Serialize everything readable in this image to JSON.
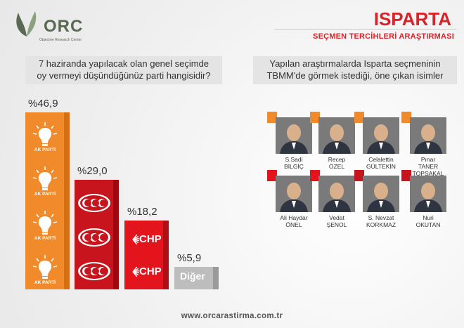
{
  "header": {
    "logo_text": "ORC",
    "logo_sub": "Objective Research Center",
    "region": "ISPARTA",
    "subtitle": "SEÇMEN TERCİHLERİ ARAŞTIRMASI"
  },
  "question_left": {
    "line1": "7 haziranda yapılacak olan genel seçimde",
    "line2": "oy vermeyi düşündüğünüz parti hangisidir?"
  },
  "question_right": {
    "line1": "Yapılan araştırmalarda Isparta seçmeninin",
    "line2": "TBMM'de görmek istediği, öne çıkan isimler"
  },
  "chart_data": {
    "type": "bar",
    "categories": [
      "AK PARTİ",
      "MHP",
      "CHP",
      "Diğer"
    ],
    "values": [
      46.9,
      29.0,
      18.2,
      5.9
    ],
    "value_labels": [
      "%46,9",
      "%29,0",
      "%18,2",
      "%5,9"
    ],
    "colors": [
      "#f08a2a",
      "#c8141c",
      "#e3141c",
      "#bdbdbd"
    ],
    "title": "",
    "xlabel": "",
    "ylabel": ""
  },
  "party_logo_texts": {
    "ak": "AK PARTİ",
    "chp": "CHP",
    "other": "Diğer"
  },
  "candidates": [
    {
      "line1": "S.Sadi",
      "line2": "BİLGİÇ",
      "party": "ak"
    },
    {
      "line1": "Recep",
      "line2": "ÖZEL",
      "party": "ak"
    },
    {
      "line1": "Celalettin",
      "line2": "GÜLTEKİN",
      "party": "ak"
    },
    {
      "line1": "Pınar",
      "line2": "TANER TOPSAKAL",
      "party": "ak"
    },
    {
      "line1": "Ali Haydar",
      "line2": "ÖNEL",
      "party": "chp"
    },
    {
      "line1": "Vedat",
      "line2": "ŞENOL",
      "party": "chp"
    },
    {
      "line1": "S. Nevzat",
      "line2": "KORKMAZ",
      "party": "mhp"
    },
    {
      "line1": "Nuri",
      "line2": "OKUTAN",
      "party": "mhp"
    }
  ],
  "footer": "www.orcarastirma.com.tr"
}
